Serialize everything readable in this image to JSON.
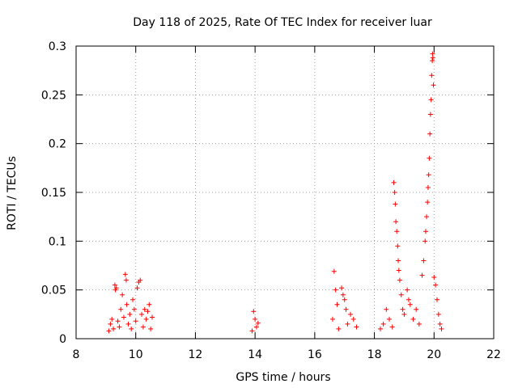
{
  "chart_data": {
    "type": "scatter",
    "title": "Day 118 of 2025, Rate Of TEC Index for receiver luar",
    "xlabel": "GPS time / hours",
    "ylabel": "ROTI / TECUs",
    "xlim": [
      8,
      22
    ],
    "ylim": [
      0,
      0.3
    ],
    "x_ticks": [
      "8",
      "10",
      "12",
      "14",
      "16",
      "18",
      "20",
      "22"
    ],
    "y_ticks": [
      "0",
      "0.05",
      "0.1",
      "0.15",
      "0.2",
      "0.25",
      "0.3"
    ],
    "grid": true,
    "marker": "+",
    "series": [
      {
        "color": "#ff0000",
        "points": [
          [
            9.1,
            0.008
          ],
          [
            9.15,
            0.015
          ],
          [
            9.2,
            0.02
          ],
          [
            9.25,
            0.01
          ],
          [
            9.3,
            0.055
          ],
          [
            9.32,
            0.05
          ],
          [
            9.35,
            0.052
          ],
          [
            9.4,
            0.018
          ],
          [
            9.45,
            0.012
          ],
          [
            9.5,
            0.03
          ],
          [
            9.55,
            0.045
          ],
          [
            9.6,
            0.022
          ],
          [
            9.65,
            0.066
          ],
          [
            9.68,
            0.06
          ],
          [
            9.7,
            0.035
          ],
          [
            9.75,
            0.015
          ],
          [
            9.8,
            0.025
          ],
          [
            9.85,
            0.01
          ],
          [
            9.9,
            0.04
          ],
          [
            9.95,
            0.03
          ],
          [
            10.0,
            0.018
          ],
          [
            10.05,
            0.052
          ],
          [
            10.1,
            0.058
          ],
          [
            10.15,
            0.06
          ],
          [
            10.2,
            0.025
          ],
          [
            10.25,
            0.012
          ],
          [
            10.3,
            0.03
          ],
          [
            10.35,
            0.02
          ],
          [
            10.4,
            0.028
          ],
          [
            10.45,
            0.035
          ],
          [
            10.5,
            0.01
          ],
          [
            10.55,
            0.022
          ],
          [
            13.9,
            0.008
          ],
          [
            13.95,
            0.028
          ],
          [
            14.0,
            0.02
          ],
          [
            14.05,
            0.012
          ],
          [
            14.1,
            0.016
          ],
          [
            16.6,
            0.02
          ],
          [
            16.65,
            0.069
          ],
          [
            16.7,
            0.05
          ],
          [
            16.75,
            0.035
          ],
          [
            16.8,
            0.01
          ],
          [
            16.9,
            0.052
          ],
          [
            16.95,
            0.045
          ],
          [
            17.0,
            0.04
          ],
          [
            17.05,
            0.03
          ],
          [
            17.1,
            0.015
          ],
          [
            17.2,
            0.025
          ],
          [
            17.3,
            0.02
          ],
          [
            17.4,
            0.012
          ],
          [
            18.2,
            0.01
          ],
          [
            18.3,
            0.015
          ],
          [
            18.4,
            0.03
          ],
          [
            18.5,
            0.02
          ],
          [
            18.6,
            0.012
          ],
          [
            18.65,
            0.16
          ],
          [
            18.68,
            0.15
          ],
          [
            18.7,
            0.138
          ],
          [
            18.72,
            0.12
          ],
          [
            18.75,
            0.11
          ],
          [
            18.78,
            0.095
          ],
          [
            18.8,
            0.08
          ],
          [
            18.82,
            0.07
          ],
          [
            18.85,
            0.06
          ],
          [
            18.9,
            0.045
          ],
          [
            18.95,
            0.03
          ],
          [
            19.0,
            0.025
          ],
          [
            19.1,
            0.05
          ],
          [
            19.15,
            0.04
          ],
          [
            19.2,
            0.035
          ],
          [
            19.3,
            0.02
          ],
          [
            19.4,
            0.03
          ],
          [
            19.5,
            0.015
          ],
          [
            19.6,
            0.065
          ],
          [
            19.65,
            0.08
          ],
          [
            19.7,
            0.1
          ],
          [
            19.72,
            0.11
          ],
          [
            19.75,
            0.125
          ],
          [
            19.78,
            0.14
          ],
          [
            19.8,
            0.155
          ],
          [
            19.82,
            0.168
          ],
          [
            19.84,
            0.185
          ],
          [
            19.86,
            0.21
          ],
          [
            19.88,
            0.23
          ],
          [
            19.9,
            0.245
          ],
          [
            19.92,
            0.27
          ],
          [
            19.94,
            0.285
          ],
          [
            19.95,
            0.292
          ],
          [
            19.96,
            0.288
          ],
          [
            19.98,
            0.26
          ],
          [
            20.0,
            0.063
          ],
          [
            20.05,
            0.055
          ],
          [
            20.1,
            0.04
          ],
          [
            20.15,
            0.025
          ],
          [
            20.2,
            0.015
          ],
          [
            20.25,
            0.01
          ]
        ]
      }
    ]
  }
}
